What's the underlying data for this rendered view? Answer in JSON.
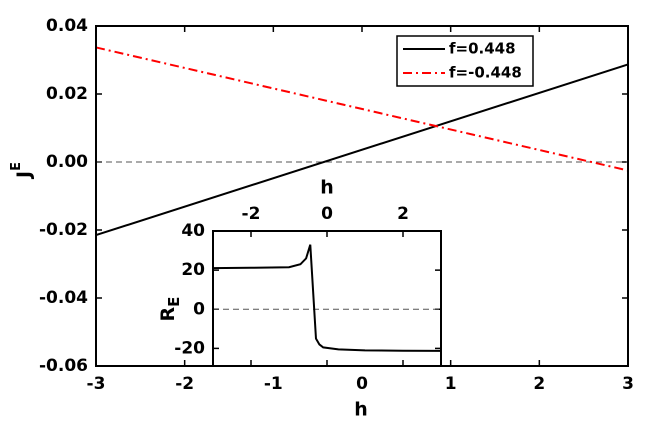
{
  "chart_data": [
    {
      "type": "line",
      "xlabel": "h",
      "ylabel": "J",
      "ylabel_sup": "E",
      "x": [
        -3,
        3
      ],
      "series": [
        {
          "name": "f=0.448",
          "color": "#000000",
          "linestyle": "-",
          "values": [
            -0.0215,
            0.0287
          ]
        },
        {
          "name": "f=-0.448",
          "color": "#ff0000",
          "linestyle": "-.",
          "values": [
            0.0337,
            -0.0025
          ]
        }
      ],
      "xlim": [
        -3,
        3
      ],
      "xticks": [
        -3,
        -2,
        -1,
        0,
        1,
        2,
        3
      ],
      "ylim": [
        -0.06,
        0.04
      ],
      "yticks": [
        -0.06,
        -0.04,
        -0.02,
        {
          "value": 0,
          "label": "0.00"
        },
        0.02,
        0.04
      ],
      "hline": 0,
      "legend": "upper right"
    },
    {
      "type": "line",
      "xlabel": "h",
      "ylabel": "R",
      "ylabel_sub": "E",
      "x": [
        -3,
        -2,
        -1,
        -0.7,
        -0.55,
        -0.44,
        -0.29,
        -0.2,
        -0.1,
        0.3,
        1,
        2,
        3
      ],
      "series": [
        {
          "color": "#000000",
          "linestyle": "-",
          "values": [
            21,
            21.2,
            21.5,
            23,
            26,
            33,
            -15,
            -18,
            -19.5,
            -20.5,
            -21,
            -21.2,
            -21.3
          ]
        }
      ],
      "xlim": [
        -3,
        3
      ],
      "xticks": [
        -2,
        0,
        2
      ],
      "ylim": [
        -29,
        40
      ],
      "yticks": [
        -20,
        0,
        20,
        40
      ],
      "hline": 0
    }
  ]
}
